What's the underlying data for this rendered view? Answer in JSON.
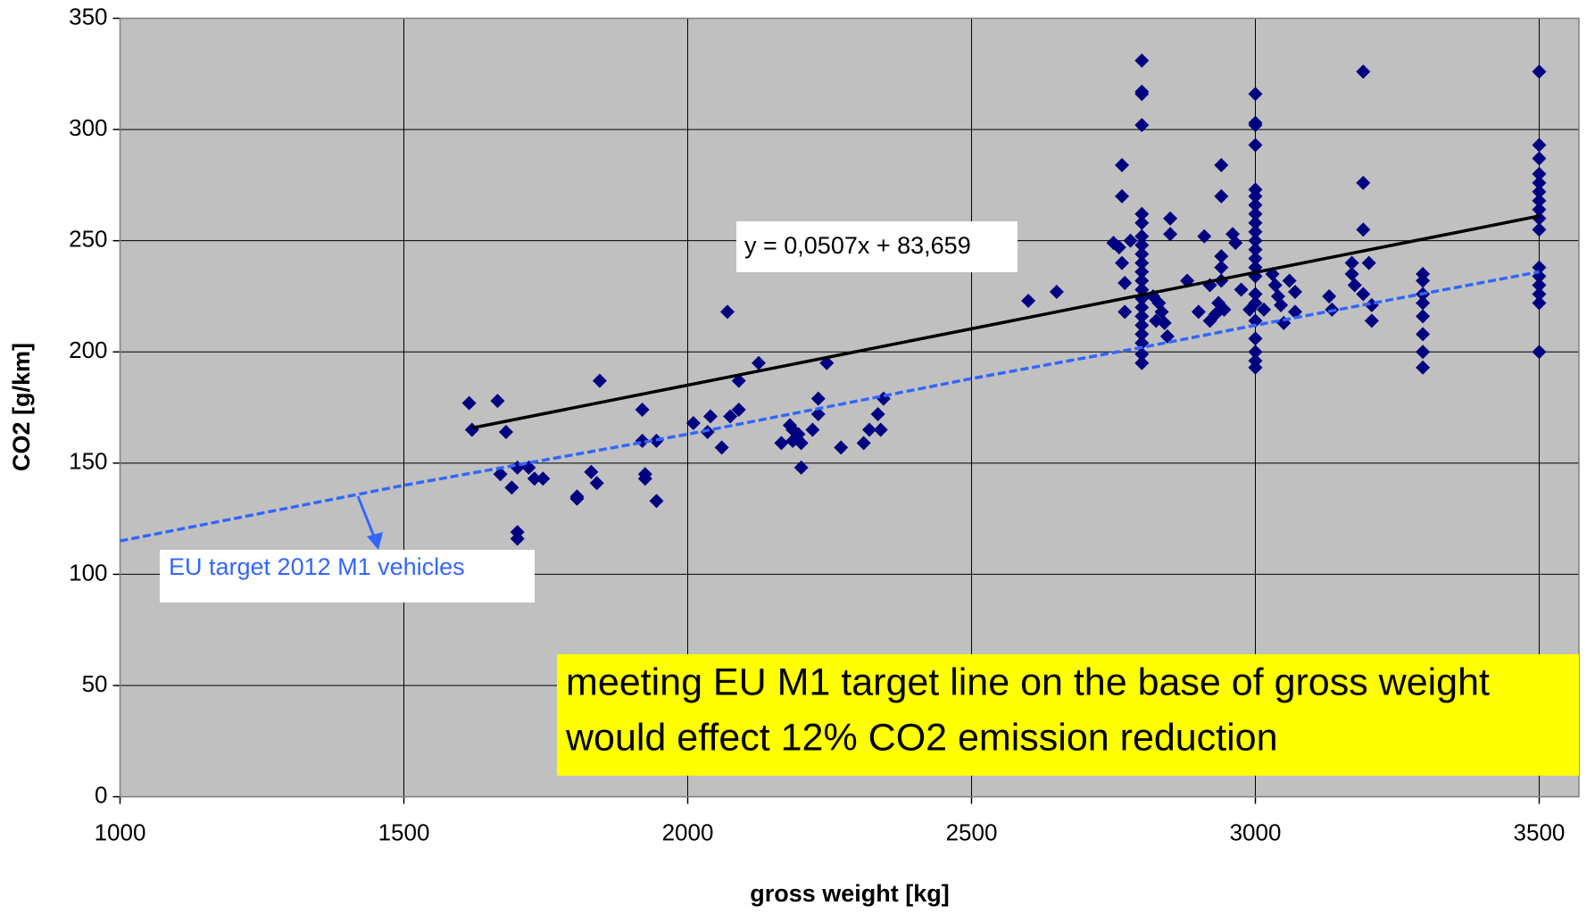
{
  "chart_data": {
    "type": "scatter",
    "x_label": "gross weight [kg]",
    "y_label": "CO2 [g/km]",
    "xlim": [
      1000,
      3570
    ],
    "ylim": [
      0,
      350
    ],
    "xticks": [
      1000,
      1500,
      2000,
      2500,
      3000,
      3500
    ],
    "yticks": [
      0,
      50,
      100,
      150,
      200,
      250,
      300,
      350
    ],
    "grid": true,
    "background": "#c0c0c0",
    "series": [
      {
        "color": "#000080",
        "marker": "diamond",
        "x": [
          1615,
          1620,
          1665,
          1680,
          1670,
          1690,
          1700,
          1700,
          1700,
          1720,
          1730,
          1745,
          1805,
          1805,
          1830,
          1840,
          1845,
          1920,
          1920,
          1925,
          1925,
          1945,
          1945,
          2010,
          2035,
          2040,
          2060,
          2070,
          2075,
          2090,
          2090,
          2125,
          2165,
          2180,
          2185,
          2185,
          2195,
          2200,
          2200,
          2220,
          2230,
          2230,
          2245,
          2270,
          2310,
          2320,
          2335,
          2340,
          2345,
          2600,
          2650,
          2750,
          2760,
          2765,
          2765,
          2765,
          2770,
          2770,
          2780,
          2800,
          2800,
          2800,
          2800,
          2800,
          2800,
          2800,
          2800,
          2800,
          2800,
          2800,
          2800,
          2800,
          2800,
          2800,
          2800,
          2800,
          2800,
          2800,
          2800,
          2800,
          2820,
          2825,
          2830,
          2835,
          2840,
          2845,
          2850,
          2850,
          2880,
          2900,
          2910,
          2920,
          2920,
          2930,
          2935,
          2940,
          2940,
          2940,
          2940,
          2940,
          2945,
          2960,
          2965,
          2975,
          2990,
          3000,
          3000,
          3000,
          3000,
          3000,
          3000,
          3000,
          3000,
          3000,
          3000,
          3000,
          3000,
          3000,
          3000,
          3000,
          3000,
          3000,
          3000,
          3000,
          3000,
          3000,
          3000,
          3015,
          3030,
          3035,
          3040,
          3045,
          3050,
          3060,
          3070,
          3070,
          3130,
          3135,
          3170,
          3170,
          3175,
          3190,
          3190,
          3190,
          3190,
          3200,
          3205,
          3205,
          3295,
          3295,
          3295,
          3295,
          3295,
          3295,
          3295,
          3295,
          3500,
          3500,
          3500,
          3500,
          3500,
          3500,
          3500,
          3500,
          3500,
          3500,
          3500,
          3500,
          3500,
          3500,
          3500,
          3500
        ],
        "values": [
          177,
          165,
          178,
          164,
          145,
          139,
          148,
          119,
          116,
          148,
          143,
          143,
          134,
          135,
          146,
          141,
          187,
          174,
          160,
          145,
          143,
          160,
          133,
          168,
          164,
          171,
          157,
          218,
          171,
          174,
          187,
          195,
          159,
          167,
          160,
          165,
          163,
          148,
          159,
          165,
          179,
          172,
          195,
          157,
          159,
          165,
          172,
          165,
          179,
          223,
          227,
          249,
          247,
          240,
          284,
          270,
          231,
          218,
          250,
          331,
          317,
          316,
          302,
          262,
          258,
          252,
          248,
          244,
          240,
          236,
          232,
          228,
          224,
          220,
          216,
          212,
          208,
          204,
          199,
          195,
          225,
          214,
          222,
          218,
          213,
          207,
          260,
          253,
          232,
          218,
          252,
          230,
          214,
          217,
          222,
          284,
          270,
          243,
          238,
          232,
          219,
          253,
          249,
          228,
          219,
          316,
          303,
          302,
          293,
          273,
          270,
          266,
          262,
          258,
          254,
          250,
          246,
          242,
          238,
          234,
          226,
          222,
          214,
          206,
          200,
          196,
          193,
          219,
          235,
          230,
          225,
          221,
          213,
          232,
          227,
          218,
          225,
          219,
          240,
          235,
          230,
          326,
          276,
          255,
          226,
          240,
          221,
          214,
          235,
          232,
          226,
          222,
          216,
          208,
          200,
          193,
          326,
          293,
          287,
          280,
          276,
          272,
          268,
          264,
          260,
          255,
          238,
          234,
          230,
          226,
          222,
          200
        ]
      },
      {
        "color": "#000000",
        "style": "solid",
        "x": [
          1620,
          3500
        ],
        "values": [
          165.8,
          261.1
        ]
      },
      {
        "color": "#3366ff",
        "style": "dashed",
        "x": [
          1000,
          1500,
          2000,
          2500,
          2800,
          3000,
          3500
        ],
        "values": [
          115,
          140,
          163,
          188,
          202,
          212,
          236
        ]
      }
    ],
    "annotations": [
      {
        "text": "y = 0,0507x + 83,659"
      },
      {
        "text": "EU target 2012 M1 vehicles",
        "color": "#3366ff"
      },
      {
        "lines": [
          "meeting EU M1 target line on the base of gross weight",
          "would effect 12% CO2 emission reduction"
        ],
        "background": "#ffff00"
      }
    ]
  }
}
